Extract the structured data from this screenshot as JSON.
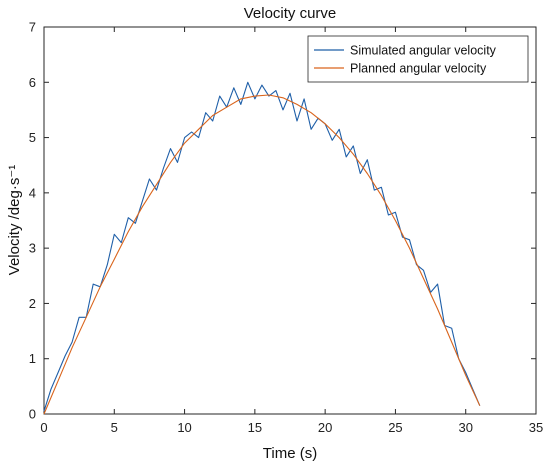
{
  "chart_data": {
    "type": "line",
    "title": "Velocity curve",
    "xlabel": "Time (s)",
    "ylabel": "Velocity /deg·s⁻¹",
    "xlim": [
      0,
      35
    ],
    "ylim": [
      0,
      7
    ],
    "xticks": [
      0,
      5,
      10,
      15,
      20,
      25,
      30,
      35
    ],
    "yticks": [
      0,
      1,
      2,
      3,
      4,
      5,
      6,
      7
    ],
    "grid": false,
    "legend_position": "top-right",
    "series": [
      {
        "name": "Simulated angular velocity",
        "color": "#1f5fa8",
        "x": [
          0,
          0.5,
          1,
          1.5,
          2,
          2.5,
          3,
          3.5,
          4,
          4.5,
          5,
          5.5,
          6,
          6.5,
          7,
          7.5,
          8,
          8.5,
          9,
          9.5,
          10,
          10.5,
          11,
          11.5,
          12,
          12.5,
          13,
          13.5,
          14,
          14.5,
          15,
          15.5,
          16,
          16.5,
          17,
          17.5,
          18,
          18.5,
          19,
          19.5,
          20,
          20.5,
          21,
          21.5,
          22,
          22.5,
          23,
          23.5,
          24,
          24.5,
          25,
          25.5,
          26,
          26.5,
          27,
          27.5,
          28,
          28.5,
          29,
          29.5,
          30,
          30.5,
          31
        ],
        "values": [
          0.05,
          0.45,
          0.75,
          1.05,
          1.3,
          1.75,
          1.75,
          2.35,
          2.3,
          2.7,
          3.25,
          3.1,
          3.55,
          3.45,
          3.85,
          4.25,
          4.05,
          4.45,
          4.8,
          4.55,
          5.0,
          5.1,
          5.0,
          5.45,
          5.3,
          5.75,
          5.55,
          5.9,
          5.6,
          6.0,
          5.7,
          5.95,
          5.75,
          5.85,
          5.5,
          5.8,
          5.3,
          5.7,
          5.15,
          5.35,
          5.25,
          4.95,
          5.15,
          4.65,
          4.85,
          4.35,
          4.6,
          4.05,
          4.1,
          3.6,
          3.65,
          3.2,
          3.15,
          2.7,
          2.6,
          2.2,
          2.35,
          1.6,
          1.55,
          1.0,
          0.75,
          0.45,
          0.15
        ]
      },
      {
        "name": "Planned angular velocity",
        "color": "#d9641c",
        "x": [
          0,
          1,
          2,
          3,
          4,
          5,
          6,
          7,
          8,
          9,
          10,
          11,
          12,
          13,
          14,
          15,
          16,
          17,
          18,
          19,
          20,
          21,
          22,
          23,
          24,
          25,
          26,
          27,
          28,
          29,
          30,
          31
        ],
        "values": [
          0.0,
          0.6,
          1.2,
          1.75,
          2.3,
          2.8,
          3.3,
          3.75,
          4.15,
          4.55,
          4.9,
          5.15,
          5.4,
          5.55,
          5.7,
          5.75,
          5.77,
          5.72,
          5.6,
          5.45,
          5.25,
          5.0,
          4.7,
          4.35,
          3.95,
          3.5,
          3.0,
          2.45,
          1.9,
          1.3,
          0.7,
          0.15
        ]
      }
    ]
  }
}
